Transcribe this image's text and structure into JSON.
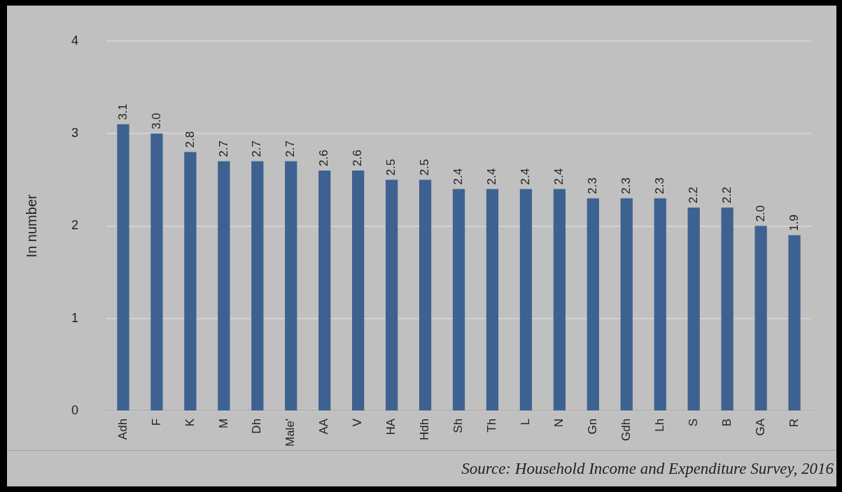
{
  "chart_data": {
    "type": "bar",
    "categories": [
      "Adh",
      "F",
      "K",
      "M",
      "Dh",
      "Male'",
      "AA",
      "V",
      "HA",
      "Hdh",
      "Sh",
      "Th",
      "L",
      "N",
      "Gn",
      "Gdh",
      "Lh",
      "S",
      "B",
      "GA",
      "R"
    ],
    "values": [
      3.1,
      3.0,
      2.8,
      2.7,
      2.7,
      2.7,
      2.6,
      2.6,
      2.5,
      2.5,
      2.4,
      2.4,
      2.4,
      2.4,
      2.3,
      2.3,
      2.3,
      2.2,
      2.2,
      2.0,
      1.9
    ],
    "color": "#3d6291",
    "ylabel": "In number",
    "ylim": [
      0,
      4
    ],
    "yticks": [
      0,
      1,
      2,
      3,
      4
    ],
    "value_labels": [
      "3.1",
      "3.0",
      "2.8",
      "2.7",
      "2.7",
      "2.7",
      "2.6",
      "2.6",
      "2.5",
      "2.5",
      "2.4",
      "2.4",
      "2.4",
      "2.4",
      "2.3",
      "2.3",
      "2.3",
      "2.2",
      "2.2",
      "2.0",
      "1.9"
    ],
    "grid": "y",
    "legend": false,
    "annotations": [
      "Source: Household Income and Expenditure Survey, 2016"
    ]
  }
}
